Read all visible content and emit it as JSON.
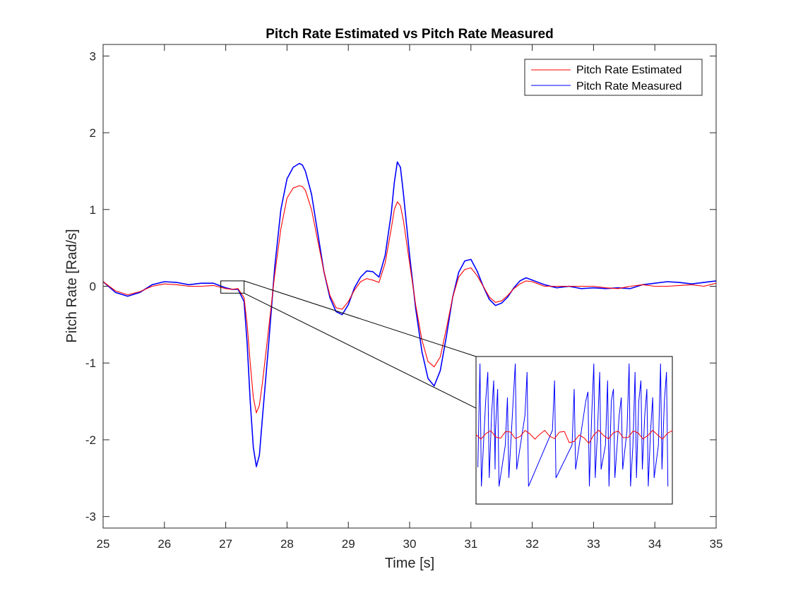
{
  "chart_data": {
    "type": "line",
    "title": "Pitch Rate Estimated vs Pitch Rate Measured",
    "xlabel": "Time [s]",
    "ylabel": "Pitch Rate [Rad/s]",
    "xlim": [
      25,
      35
    ],
    "ylim": [
      -3.15,
      3.15
    ],
    "xticks": [
      25,
      26,
      27,
      28,
      29,
      30,
      31,
      32,
      33,
      34,
      35
    ],
    "yticks": [
      -3,
      -2,
      -1,
      0,
      1,
      2,
      3
    ],
    "grid": false,
    "legend_position": "top-right",
    "series": [
      {
        "name": "Pitch Rate Estimated",
        "color": "#ff0000",
        "x": [
          25.0,
          25.2,
          25.4,
          25.6,
          25.8,
          26.0,
          26.2,
          26.4,
          26.6,
          26.8,
          27.0,
          27.1,
          27.2,
          27.3,
          27.35,
          27.4,
          27.45,
          27.5,
          27.55,
          27.6,
          27.7,
          27.8,
          27.9,
          28.0,
          28.1,
          28.2,
          28.25,
          28.3,
          28.4,
          28.5,
          28.6,
          28.7,
          28.8,
          28.9,
          29.0,
          29.1,
          29.2,
          29.3,
          29.4,
          29.5,
          29.6,
          29.7,
          29.75,
          29.8,
          29.85,
          29.9,
          30.0,
          30.1,
          30.2,
          30.3,
          30.4,
          30.5,
          30.6,
          30.7,
          30.8,
          30.9,
          31.0,
          31.1,
          31.2,
          31.3,
          31.4,
          31.5,
          31.6,
          31.7,
          31.8,
          31.9,
          32.0,
          32.2,
          32.4,
          32.6,
          32.8,
          33.0,
          33.2,
          33.4,
          33.6,
          33.8,
          34.0,
          34.2,
          34.4,
          34.6,
          34.8,
          35.0
        ],
        "y": [
          0.06,
          -0.06,
          -0.11,
          -0.07,
          0.0,
          0.03,
          0.02,
          0.0,
          0.0,
          0.01,
          -0.03,
          -0.04,
          -0.03,
          -0.15,
          -0.5,
          -1.0,
          -1.45,
          -1.65,
          -1.55,
          -1.25,
          -0.55,
          0.15,
          0.75,
          1.15,
          1.28,
          1.31,
          1.3,
          1.25,
          1.0,
          0.6,
          0.2,
          -0.12,
          -0.28,
          -0.3,
          -0.2,
          -0.05,
          0.06,
          0.1,
          0.08,
          0.05,
          0.3,
          0.75,
          1.0,
          1.1,
          1.05,
          0.85,
          0.3,
          -0.25,
          -0.7,
          -0.98,
          -1.05,
          -0.92,
          -0.55,
          -0.15,
          0.12,
          0.22,
          0.24,
          0.14,
          0.0,
          -0.14,
          -0.21,
          -0.19,
          -0.12,
          -0.03,
          0.03,
          0.07,
          0.06,
          0.0,
          0.0,
          0.0,
          0.0,
          0.0,
          -0.02,
          -0.03,
          0.0,
          0.02,
          0.0,
          0.0,
          0.01,
          0.02,
          0.0,
          0.04
        ]
      },
      {
        "name": "Pitch Rate Measured",
        "color": "#0000ff",
        "x": [
          25.0,
          25.2,
          25.4,
          25.6,
          25.8,
          26.0,
          26.2,
          26.4,
          26.6,
          26.8,
          27.0,
          27.1,
          27.2,
          27.3,
          27.35,
          27.4,
          27.45,
          27.5,
          27.55,
          27.6,
          27.7,
          27.8,
          27.9,
          28.0,
          28.1,
          28.2,
          28.25,
          28.3,
          28.4,
          28.5,
          28.6,
          28.7,
          28.8,
          28.9,
          29.0,
          29.1,
          29.2,
          29.3,
          29.4,
          29.5,
          29.6,
          29.7,
          29.75,
          29.8,
          29.85,
          29.9,
          30.0,
          30.1,
          30.2,
          30.3,
          30.4,
          30.5,
          30.6,
          30.7,
          30.8,
          30.9,
          31.0,
          31.1,
          31.2,
          31.3,
          31.4,
          31.5,
          31.6,
          31.7,
          31.8,
          31.9,
          32.0,
          32.2,
          32.4,
          32.6,
          32.8,
          33.0,
          33.2,
          33.4,
          33.6,
          33.8,
          34.0,
          34.2,
          34.4,
          34.6,
          34.8,
          35.0
        ],
        "y": [
          0.06,
          -0.08,
          -0.13,
          -0.08,
          0.02,
          0.06,
          0.05,
          0.02,
          0.04,
          0.04,
          -0.02,
          -0.04,
          -0.04,
          -0.2,
          -0.75,
          -1.5,
          -2.1,
          -2.35,
          -2.2,
          -1.7,
          -0.75,
          0.25,
          1.0,
          1.4,
          1.55,
          1.6,
          1.58,
          1.5,
          1.2,
          0.7,
          0.2,
          -0.15,
          -0.33,
          -0.37,
          -0.24,
          -0.02,
          0.12,
          0.2,
          0.19,
          0.12,
          0.4,
          0.95,
          1.35,
          1.62,
          1.55,
          1.2,
          0.4,
          -0.3,
          -0.85,
          -1.2,
          -1.3,
          -1.1,
          -0.65,
          -0.15,
          0.18,
          0.33,
          0.35,
          0.2,
          0.0,
          -0.17,
          -0.25,
          -0.22,
          -0.14,
          -0.02,
          0.07,
          0.11,
          0.08,
          0.02,
          -0.02,
          0.0,
          -0.03,
          -0.02,
          -0.03,
          -0.02,
          -0.03,
          0.02,
          0.04,
          0.06,
          0.05,
          0.03,
          0.05,
          0.07
        ]
      }
    ],
    "inset": {
      "source_xlim": [
        26.92,
        27.3
      ],
      "source_ylim": [
        -0.09,
        0.07
      ]
    }
  }
}
